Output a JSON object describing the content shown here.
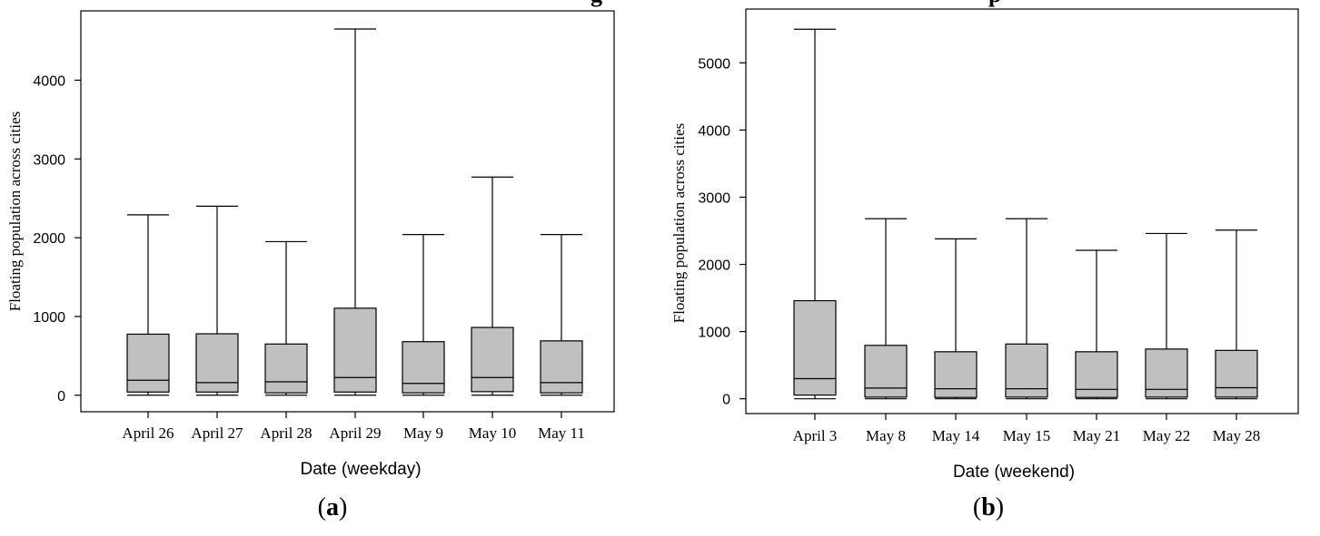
{
  "top_fragments": {
    "left": "g",
    "right": "p"
  },
  "chart_data": [
    {
      "type": "box",
      "panel_label_open": "(",
      "panel_label": "a",
      "panel_label_close": ")",
      "title": "",
      "xlabel": "Date (weekday)",
      "ylabel": "Floating population across cities",
      "ylim": [
        -210,
        4880
      ],
      "yticks": [
        0,
        1000,
        2000,
        3000,
        4000
      ],
      "grid": false,
      "box_fill": "#c0c0c0",
      "categories": [
        "April 26",
        "April 27",
        "April 28",
        "April 29",
        "May 9",
        "May 10",
        "May 11"
      ],
      "boxes": [
        {
          "min": 0,
          "q1": 40,
          "median": 190,
          "q3": 775,
          "max": 2290
        },
        {
          "min": 0,
          "q1": 40,
          "median": 160,
          "q3": 780,
          "max": 2400
        },
        {
          "min": 0,
          "q1": 30,
          "median": 170,
          "q3": 650,
          "max": 1950
        },
        {
          "min": 0,
          "q1": 40,
          "median": 225,
          "q3": 1105,
          "max": 4650
        },
        {
          "min": 0,
          "q1": 30,
          "median": 150,
          "q3": 680,
          "max": 2040
        },
        {
          "min": 0,
          "q1": 45,
          "median": 225,
          "q3": 860,
          "max": 2770
        },
        {
          "min": 0,
          "q1": 30,
          "median": 160,
          "q3": 690,
          "max": 2040
        }
      ]
    },
    {
      "type": "box",
      "panel_label_open": "(",
      "panel_label": "b",
      "panel_label_close": ")",
      "title": "",
      "xlabel": "Date (weekend)",
      "ylabel": "Floating population across cities",
      "ylim": [
        -220,
        5800
      ],
      "yticks": [
        0,
        1000,
        2000,
        3000,
        4000,
        5000
      ],
      "grid": false,
      "box_fill": "#c0c0c0",
      "categories": [
        "April 3",
        "May 8",
        "May 14",
        "May 15",
        "May 21",
        "May 22",
        "May 28"
      ],
      "boxes": [
        {
          "min": 0,
          "q1": 55,
          "median": 300,
          "q3": 1460,
          "max": 5500
        },
        {
          "min": 0,
          "q1": 25,
          "median": 160,
          "q3": 795,
          "max": 2680
        },
        {
          "min": 0,
          "q1": 20,
          "median": 150,
          "q3": 700,
          "max": 2380
        },
        {
          "min": 0,
          "q1": 25,
          "median": 150,
          "q3": 815,
          "max": 2680
        },
        {
          "min": 0,
          "q1": 20,
          "median": 140,
          "q3": 700,
          "max": 2210
        },
        {
          "min": 0,
          "q1": 25,
          "median": 140,
          "q3": 740,
          "max": 2460
        },
        {
          "min": 0,
          "q1": 25,
          "median": 165,
          "q3": 720,
          "max": 2510
        }
      ]
    }
  ]
}
